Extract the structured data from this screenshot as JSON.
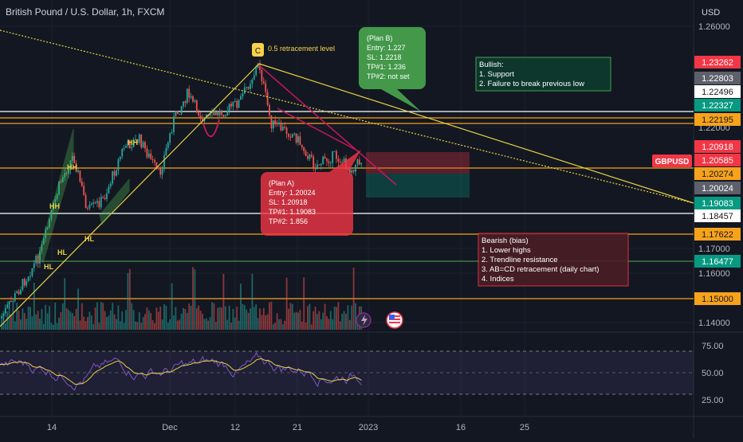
{
  "chart": {
    "title": "British Pound / U.S. Dollar, 1h, FXCM",
    "currency": "USD",
    "symbol_tag": "GBPUSD"
  },
  "price_axis": {
    "ticks": [
      "1.26000",
      "1.22000",
      "1.17000",
      "1.16000",
      "1.14000"
    ],
    "labels": [
      {
        "text": "1.23262",
        "bg": "#f23645",
        "fg": "#ffffff"
      },
      {
        "text": "1.22803",
        "bg": "#5d606b",
        "fg": "#ffffff"
      },
      {
        "text": "1.22496",
        "bg": "#ffffff",
        "fg": "#131722"
      },
      {
        "text": "1.22327",
        "bg": "#089981",
        "fg": "#ffffff"
      },
      {
        "text": "1.22195",
        "bg": "#f7a21b",
        "fg": "#131722"
      },
      {
        "text": "1.20918",
        "bg": "#f23645",
        "fg": "#ffffff"
      },
      {
        "text": "1.20585",
        "bg": "#f23645",
        "fg": "#ffffff"
      },
      {
        "text": "1.20274",
        "bg": "#f7a21b",
        "fg": "#131722"
      },
      {
        "text": "1.20024",
        "bg": "#5d606b",
        "fg": "#ffffff"
      },
      {
        "text": "1.19083",
        "bg": "#089981",
        "fg": "#ffffff"
      },
      {
        "text": "1.18457",
        "bg": "#ffffff",
        "fg": "#131722"
      },
      {
        "text": "1.17622",
        "bg": "#f7a21b",
        "fg": "#131722"
      },
      {
        "text": "1.16477",
        "bg": "#089981",
        "fg": "#ffffff"
      },
      {
        "text": "1.15000",
        "bg": "#f7a21b",
        "fg": "#131722"
      }
    ]
  },
  "rsi_axis": {
    "ticks": [
      "75.00",
      "50.00",
      "25.00"
    ]
  },
  "time_axis": {
    "ticks": [
      "14",
      "Dec",
      "12",
      "21",
      "2023",
      "16",
      "25"
    ]
  },
  "annotations": {
    "retracement_badge": "C",
    "retracement_text": "0.5 retracement level",
    "plan_b": [
      "(Plan B)",
      "Entry: 1.227",
      "SL: 1.2218",
      "TP#1: 1.236",
      "TP#2: not set"
    ],
    "plan_a": [
      "(Plan A)",
      "Entry: 1.20024",
      "SL: 1.20918",
      "TP#1: 1.19083",
      "TP#2: 1.856"
    ],
    "bullish": [
      "Bullish:",
      "1. Support",
      "2. Failure to break previous low"
    ],
    "bearish": [
      "Bearish (bias)",
      "1. Lower highs",
      "2. Trendline resistance",
      "3. AB=CD retracement (daily chart)",
      "4. Indices"
    ],
    "structure_labels": [
      "HH",
      "HH",
      "HL",
      "HL",
      "HL",
      "HH"
    ]
  },
  "colors": {
    "background": "#131722",
    "up": "#26a69a",
    "down": "#ef5350",
    "orange_level": "#f7a21b",
    "trendline": "#e6d342",
    "rsi_line": "#7e57c2"
  },
  "icons": [
    "lightning-icon",
    "us-flag-icon"
  ]
}
